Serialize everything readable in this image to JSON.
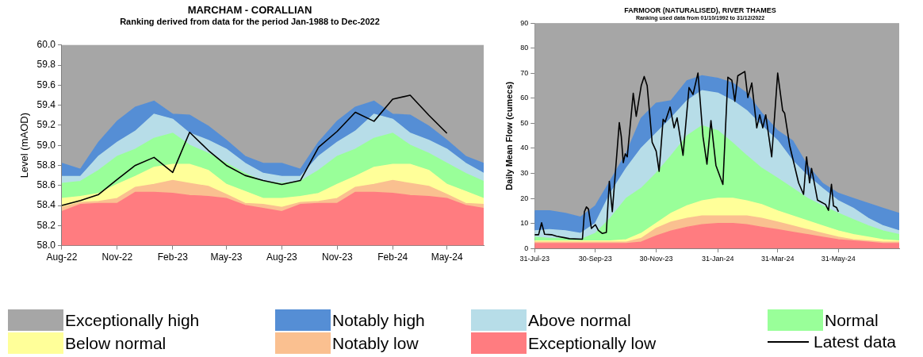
{
  "chart_data": [
    {
      "type": "area",
      "title": "MARCHAM - CORALLIAN",
      "subtitle": "Ranking derived from data for the period Jan-1988 to Dec-2022",
      "ylabel": "Level (mAOD)",
      "grid": false,
      "legend": "bottom",
      "x": [
        "2022-08",
        "2022-09",
        "2022-10",
        "2022-11",
        "2022-12",
        "2023-01",
        "2023-02",
        "2023-03",
        "2023-04",
        "2023-05",
        "2023-06",
        "2023-07",
        "2023-08",
        "2023-09",
        "2023-10",
        "2023-11",
        "2023-12",
        "2024-01",
        "2024-02",
        "2024-03",
        "2024-04",
        "2024-05",
        "2024-06",
        "2024-07"
      ],
      "xlim": [
        "2022-08",
        "2024-07"
      ],
      "xticks": [
        {
          "value": "2022-08",
          "label": "Aug-22"
        },
        {
          "value": "2022-11",
          "label": "Nov-22"
        },
        {
          "value": "2023-02",
          "label": "Feb-23"
        },
        {
          "value": "2023-05",
          "label": "May-23"
        },
        {
          "value": "2023-08",
          "label": "Aug-23"
        },
        {
          "value": "2023-11",
          "label": "Nov-23"
        },
        {
          "value": "2024-02",
          "label": "Feb-24"
        },
        {
          "value": "2024-05",
          "label": "May-24"
        }
      ],
      "ylim": [
        58,
        60
      ],
      "yticks": [
        {
          "value": 58,
          "label": "58.0"
        },
        {
          "value": 58.2,
          "label": "58.2"
        },
        {
          "value": 58.4,
          "label": "58.4"
        },
        {
          "value": 58.6,
          "label": "58.6"
        },
        {
          "value": 58.8,
          "label": "58.8"
        },
        {
          "value": 59,
          "label": "59.0"
        },
        {
          "value": 59.2,
          "label": "59.2"
        },
        {
          "value": 59.4,
          "label": "59.4"
        },
        {
          "value": 59.6,
          "label": "59.6"
        },
        {
          "value": 59.8,
          "label": "59.8"
        },
        {
          "value": 60,
          "label": "60.0"
        }
      ],
      "series": [
        {
          "name": "Exceptionally low",
          "color": "#ff7c80",
          "values": [
            58.34,
            58.41,
            58.42,
            58.42,
            58.53,
            58.53,
            58.52,
            58.5,
            58.49,
            58.47,
            58.4,
            58.37,
            58.34,
            58.41,
            58.42,
            58.42,
            58.53,
            58.53,
            58.52,
            58.5,
            58.49,
            58.47,
            58.4,
            58.37
          ]
        },
        {
          "name": "Notably low",
          "color": "#fac090",
          "values": [
            58.38,
            58.43,
            58.44,
            58.47,
            58.58,
            58.61,
            58.65,
            58.62,
            58.59,
            58.51,
            58.42,
            58.41,
            58.38,
            58.43,
            58.44,
            58.47,
            58.58,
            58.61,
            58.65,
            58.62,
            58.59,
            58.51,
            58.42,
            58.41
          ]
        },
        {
          "name": "Below normal",
          "color": "#ffff99",
          "values": [
            58.47,
            58.49,
            58.52,
            58.61,
            58.69,
            58.78,
            58.81,
            58.81,
            58.75,
            58.61,
            58.54,
            58.47,
            58.47,
            58.49,
            58.52,
            58.61,
            58.69,
            58.78,
            58.81,
            58.81,
            58.75,
            58.61,
            58.54,
            58.47
          ]
        },
        {
          "name": "Normal",
          "color": "#99ff99",
          "values": [
            58.62,
            58.64,
            58.75,
            58.89,
            58.96,
            59.07,
            59.12,
            59.0,
            58.92,
            58.82,
            58.72,
            58.64,
            58.62,
            58.64,
            58.75,
            58.89,
            58.96,
            59.07,
            59.12,
            59.0,
            58.92,
            58.82,
            58.72,
            58.64
          ]
        },
        {
          "name": "Above normal",
          "color": "#b7dde8",
          "values": [
            58.69,
            58.69,
            58.89,
            59.03,
            59.14,
            59.31,
            59.26,
            59.12,
            59.05,
            58.96,
            58.82,
            58.72,
            58.69,
            58.69,
            58.89,
            59.03,
            59.14,
            59.31,
            59.26,
            59.12,
            59.05,
            58.96,
            58.82,
            58.72
          ]
        },
        {
          "name": "Notably high",
          "color": "#558ed5",
          "values": [
            58.82,
            58.76,
            59.03,
            59.24,
            59.38,
            59.44,
            59.31,
            59.3,
            59.19,
            59.05,
            58.89,
            58.82,
            58.82,
            58.76,
            59.03,
            59.24,
            59.38,
            59.44,
            59.31,
            59.3,
            59.19,
            59.05,
            58.89,
            58.82
          ]
        },
        {
          "name": "Exceptionally high",
          "color": "#a6a6a6",
          "values": [
            60,
            60,
            60,
            60,
            60,
            60,
            60,
            60,
            60,
            60,
            60,
            60,
            60,
            60,
            60,
            60,
            60,
            60,
            60,
            60,
            60,
            60,
            60,
            60
          ]
        },
        {
          "name": "Latest data",
          "type": "line",
          "color": "#000000",
          "values": [
            58.4,
            58.45,
            58.51,
            58.66,
            58.8,
            58.88,
            58.73,
            59.13,
            58.95,
            58.8,
            58.7,
            58.65,
            58.61,
            58.65,
            58.98,
            59.14,
            59.33,
            59.24,
            59.46,
            59.5,
            59.3,
            59.12,
            null,
            null
          ]
        }
      ]
    },
    {
      "type": "area",
      "title": "FARMOOR (NATURALISED), RIVER THAMES",
      "subtitle": "Ranking used data from 01/10/1992 to 31/12/2022",
      "ylabel": "Daily Mean Flow (cumecs)",
      "stacked": true,
      "grid": false,
      "x": [
        "2023-07-31",
        "2023-08-15",
        "2023-08-31",
        "2023-09-15",
        "2023-09-30",
        "2023-10-15",
        "2023-10-31",
        "2023-11-15",
        "2023-11-30",
        "2023-12-15",
        "2023-12-31",
        "2024-01-15",
        "2024-01-31",
        "2024-02-15",
        "2024-02-29",
        "2024-03-15",
        "2024-03-31",
        "2024-04-15",
        "2024-04-30",
        "2024-05-15",
        "2024-05-31",
        "2024-06-15",
        "2024-06-30",
        "2024-07-15",
        "2024-07-31"
      ],
      "xlim": [
        "2023-07-31",
        "2024-07-31"
      ],
      "xticks": [
        {
          "value": "2023-07-31",
          "label": "31-Jul-23"
        },
        {
          "value": "2023-09-30",
          "label": "30-Sep-23"
        },
        {
          "value": "2023-11-30",
          "label": "30-Nov-23"
        },
        {
          "value": "2024-01-31",
          "label": "31-Jan-24"
        },
        {
          "value": "2024-03-31",
          "label": "31-Mar-24"
        },
        {
          "value": "2024-05-31",
          "label": "31-May-24"
        }
      ],
      "ylim": [
        0,
        90
      ],
      "yticks": [
        0,
        10,
        20,
        30,
        40,
        50,
        60,
        70,
        80,
        90
      ],
      "series": [
        {
          "color": "#ff7c80",
          "values": [
            2,
            2,
            2,
            2,
            2,
            2,
            2,
            2.5,
            5,
            7,
            8.5,
            9.5,
            10,
            10,
            9.5,
            8.5,
            7.5,
            6.5,
            5.5,
            4.5,
            3.5,
            3,
            2.5,
            2,
            2
          ]
        },
        {
          "color": "#fac090",
          "values": [
            0.5,
            0.5,
            0.5,
            0.5,
            0.5,
            0.5,
            0.5,
            1.5,
            3,
            3.5,
            3.5,
            3.5,
            3,
            3,
            3.5,
            3.5,
            3,
            2.5,
            2,
            1.5,
            1,
            0.5,
            0.5,
            0.5,
            0.5
          ]
        },
        {
          "color": "#ffff99",
          "values": [
            0.5,
            0.5,
            0.5,
            0.5,
            0.5,
            0.5,
            1,
            2,
            2,
            3.5,
            5,
            6,
            7,
            7,
            6,
            5.5,
            4.5,
            4,
            3.5,
            3,
            2.5,
            2,
            1.5,
            1,
            0.5
          ]
        },
        {
          "color": "#99ff99",
          "values": [
            1.5,
            1,
            1,
            0.5,
            3,
            9,
            16.5,
            18,
            20,
            23,
            28,
            30,
            27,
            22,
            18,
            14.5,
            13,
            11,
            9,
            8,
            7,
            6,
            4.5,
            3.5,
            2.5
          ]
        },
        {
          "color": "#b7dde8",
          "values": [
            2.5,
            3.5,
            3,
            2.5,
            4,
            10,
            12,
            16,
            16,
            15,
            14,
            14,
            15,
            17,
            18,
            17,
            15,
            11,
            9,
            7,
            5,
            4.5,
            3,
            2,
            1.5
          ]
        },
        {
          "color": "#558ed5",
          "values": [
            8,
            7.5,
            7,
            6.5,
            7,
            5,
            6,
            12,
            12,
            7,
            8,
            6,
            6,
            7,
            7,
            5,
            4,
            8,
            4,
            2,
            3,
            4,
            6,
            7,
            7
          ]
        },
        {
          "color": "#a6a6a6",
          "values": [
            75,
            75,
            76,
            77.5,
            73,
            63,
            52,
            38,
            32,
            31,
            23,
            21,
            22,
            24,
            28,
            36,
            43,
            47,
            57,
            64,
            68,
            70,
            72,
            74,
            76
          ]
        },
        {
          "type": "line",
          "color": "#000000",
          "x": [
            "2023-07-31",
            "2023-08-04",
            "2023-08-07",
            "2023-08-10",
            "2023-08-17",
            "2023-08-22",
            "2023-08-30",
            "2023-09-04",
            "2023-09-17",
            "2023-09-19",
            "2023-09-21",
            "2023-09-23",
            "2023-09-26",
            "2023-09-30",
            "2023-10-03",
            "2023-10-07",
            "2023-10-11",
            "2023-10-14",
            "2023-10-17",
            "2023-10-24",
            "2023-10-26",
            "2023-10-28",
            "2023-10-30",
            "2023-11-01",
            "2023-11-07",
            "2023-11-10",
            "2023-11-15",
            "2023-11-18",
            "2023-11-21",
            "2023-11-26",
            "2023-11-30",
            "2023-12-03",
            "2023-12-07",
            "2023-12-09",
            "2023-12-14",
            "2023-12-18",
            "2023-12-21",
            "2023-12-27",
            "2024-01-02",
            "2024-01-06",
            "2024-01-11",
            "2024-01-16",
            "2024-01-20",
            "2024-01-24",
            "2024-01-29",
            "2024-02-05",
            "2024-02-10",
            "2024-02-14",
            "2024-02-17",
            "2024-02-20",
            "2024-02-27",
            "2024-03-01",
            "2024-03-05",
            "2024-03-10",
            "2024-03-13",
            "2024-03-16",
            "2024-03-19",
            "2024-03-25",
            "2024-03-31",
            "2024-04-05",
            "2024-04-07",
            "2024-04-12",
            "2024-04-21",
            "2024-04-26",
            "2024-04-29",
            "2024-05-02",
            "2024-05-04",
            "2024-05-10",
            "2024-05-18",
            "2024-05-21",
            "2024-05-24",
            "2024-05-26",
            "2024-05-29",
            "2024-05-31"
          ],
          "values": [
            5.5,
            5.5,
            10.3,
            5.7,
            5.5,
            4.9,
            4.3,
            3.9,
            3.7,
            14.7,
            16.6,
            15.8,
            8,
            9.5,
            7.2,
            6,
            6.4,
            26.8,
            14.7,
            50.3,
            44.7,
            34.3,
            37.8,
            36.6,
            62,
            52.8,
            65,
            68.7,
            65,
            42.4,
            38.9,
            30.8,
            51.6,
            50.5,
            56.5,
            48.2,
            52.2,
            37.2,
            64.3,
            61.5,
            70.1,
            44.7,
            33.7,
            51.1,
            33.2,
            25.6,
            68.4,
            67.2,
            58.8,
            69,
            70.7,
            60.3,
            66.1,
            48.2,
            53.4,
            48.2,
            53.4,
            36.6,
            70.1,
            55.1,
            54,
            41.2,
            26.2,
            21.6,
            36.6,
            26.2,
            32,
            19.3,
            17.6,
            15.2,
            25.6,
            17,
            16.4,
            14.7
          ]
        }
      ]
    }
  ]
}
